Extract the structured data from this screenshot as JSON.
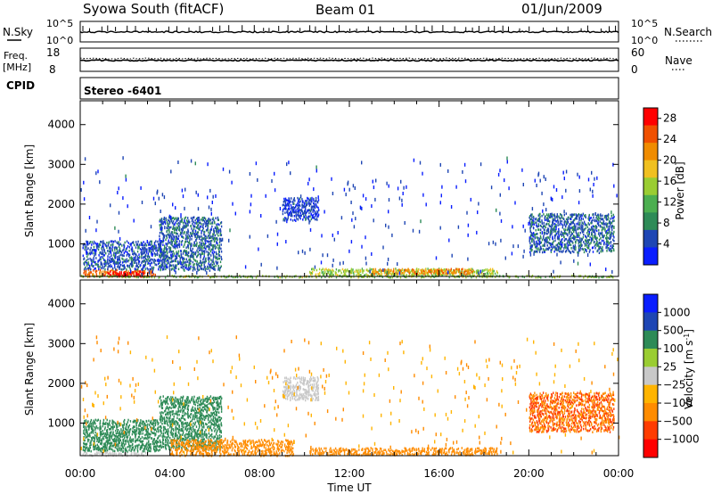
{
  "header": {
    "station": "Syowa South (fitACF)",
    "beam": "Beam 01",
    "date": "01/Jun/2009"
  },
  "top_panels": {
    "nsky_label": "N.Sky",
    "nsky_ticks": [
      "10^5",
      "10^0"
    ],
    "nsearch_label": "N.Search",
    "nsearch_ticks": [
      "10^5",
      "10^0"
    ],
    "freq_label": "Freq.",
    "freq_unit": "[MHz]",
    "freq_ticks": [
      "18",
      "8"
    ],
    "nave_label": "Nave",
    "nave_ticks": [
      "60",
      "0"
    ],
    "cpid_label": "CPID",
    "cpid_value": "Stereo -6401"
  },
  "colors": {
    "power_scale": [
      "#0a1eff",
      "#1e46b4",
      "#2e8b57",
      "#4caf50",
      "#9acd32",
      "#f0c020",
      "#f08c00",
      "#f05000",
      "#ff0000"
    ],
    "velocity_scale": [
      "#ff0000",
      "#ff3c00",
      "#ff8c00",
      "#ffb400",
      "#c8c8c8",
      "#9acd32",
      "#2e8b57",
      "#1e46b4",
      "#0a1eff"
    ]
  },
  "chart_data": [
    {
      "type": "heatmap",
      "panel": "power",
      "ylabel": "Slant Range [km]",
      "xlabel": "",
      "x_ticks": [
        "00:00",
        "04:00",
        "08:00",
        "12:00",
        "16:00",
        "20:00",
        "00:00"
      ],
      "xlim_hours": [
        0,
        24
      ],
      "ylim_km": [
        180,
        4600
      ],
      "y_ticks": [
        1000,
        2000,
        3000,
        4000
      ],
      "colorbar_label": "Power [dB]",
      "colorbar_ticks": [
        "4",
        "8",
        "12",
        "16",
        "20",
        "24",
        "28"
      ],
      "colorbar_range": [
        0,
        30
      ],
      "regions": [
        {
          "t0": 0.1,
          "t1": 3.3,
          "r0": 200,
          "r1": 380,
          "value": 24
        },
        {
          "t0": 1.2,
          "t1": 2.8,
          "r0": 200,
          "r1": 340,
          "value": 29
        },
        {
          "t0": 0.1,
          "t1": 3.8,
          "r0": 380,
          "r1": 1100,
          "value": 5
        },
        {
          "t0": 3.5,
          "t1": 6.3,
          "r0": 350,
          "r1": 1700,
          "value": 6
        },
        {
          "t0": 10.2,
          "t1": 18.6,
          "r0": 220,
          "r1": 420,
          "value": 15
        },
        {
          "t0": 13.0,
          "t1": 17.5,
          "r0": 260,
          "r1": 380,
          "value": 22
        },
        {
          "t0": 20.0,
          "t1": 23.8,
          "r0": 800,
          "r1": 1800,
          "value": 6
        },
        {
          "t0": 0.0,
          "t1": 24.0,
          "r0": 180,
          "r1": 240,
          "value": 14
        },
        {
          "t0": 9.0,
          "t1": 10.6,
          "r0": 1600,
          "r1": 2200,
          "value": 4
        },
        {
          "t0": 0.0,
          "t1": 24.0,
          "r0": 240,
          "r1": 3200,
          "value": 4,
          "sparse": true
        }
      ]
    },
    {
      "type": "heatmap",
      "panel": "velocity",
      "ylabel": "Slant Range [km]",
      "xlabel": "Time UT",
      "x_ticks": [
        "00:00",
        "04:00",
        "08:00",
        "12:00",
        "16:00",
        "20:00",
        "00:00"
      ],
      "xlim_hours": [
        0,
        24
      ],
      "ylim_km": [
        180,
        4600
      ],
      "y_ticks": [
        1000,
        2000,
        3000,
        4000
      ],
      "colorbar_label": "Velocity [m s",
      "colorbar_label_sup": "-1",
      "colorbar_label_end": "]",
      "colorbar_ticks": [
        "1000",
        "500",
        "100",
        "25",
        "−25",
        "−100",
        "−500",
        "−1000"
      ],
      "regions": [
        {
          "t0": 0.1,
          "t1": 3.5,
          "r0": 300,
          "r1": 1100,
          "value": 300
        },
        {
          "t0": 0.1,
          "t1": 3.0,
          "r0": 200,
          "r1": 300,
          "value": 10
        },
        {
          "t0": 3.5,
          "t1": 6.3,
          "r0": 350,
          "r1": 1700,
          "value": 300
        },
        {
          "t0": 4.0,
          "t1": 9.5,
          "r0": 200,
          "r1": 600,
          "value": -200
        },
        {
          "t0": 10.2,
          "t1": 18.6,
          "r0": 220,
          "r1": 420,
          "value": -200
        },
        {
          "t0": 20.0,
          "t1": 23.8,
          "r0": 800,
          "r1": 1800,
          "value": -500
        },
        {
          "t0": 9.0,
          "t1": 10.6,
          "r0": 1600,
          "r1": 2200,
          "value": 10
        },
        {
          "t0": 0.0,
          "t1": 24.0,
          "r0": 240,
          "r1": 3200,
          "value": -100,
          "sparse": true
        }
      ]
    }
  ]
}
